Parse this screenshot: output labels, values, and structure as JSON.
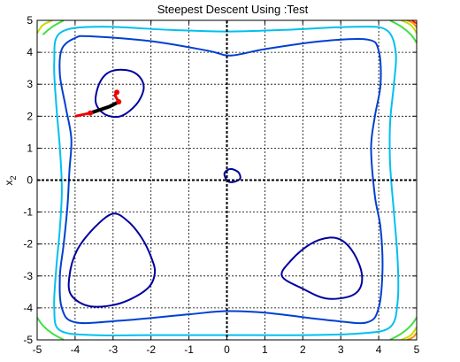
{
  "chart_data": {
    "type": "line",
    "title": "Steepest Descent Using :Test",
    "xlabel": "",
    "ylabel": "x2",
    "ylabel_main": "x",
    "ylabel_sub": "2",
    "xlim": [
      -5,
      5
    ],
    "ylim": [
      -5,
      5
    ],
    "xticks": [
      "-5",
      "-4",
      "-3",
      "-2",
      "-1",
      "0",
      "1",
      "2",
      "3",
      "4",
      "5"
    ],
    "yticks": [
      "5",
      "4",
      "3",
      "2",
      "1",
      "0",
      "-1",
      "-2",
      "-3",
      "-4",
      "-5"
    ],
    "grid": true,
    "contour_colors": {
      "inner": "#0000a0",
      "mid": "#0040d0",
      "cyan": "#00c0f0",
      "green": "#40e040",
      "yellow": "#c0e000",
      "orange": "#ff9000",
      "red": "#ff2000"
    },
    "series": [
      {
        "kind": "contour",
        "level": "inner",
        "points": [
          [
            -2.9,
            3.45
          ],
          [
            -2.5,
            3.4
          ],
          [
            -2.25,
            3.15
          ],
          [
            -2.2,
            2.8
          ],
          [
            -2.4,
            2.35
          ],
          [
            -2.8,
            2.0
          ],
          [
            -3.2,
            2.05
          ],
          [
            -3.45,
            2.4
          ],
          [
            -3.4,
            2.9
          ],
          [
            -3.2,
            3.3
          ]
        ]
      },
      {
        "kind": "contour",
        "level": "inner",
        "points": [
          [
            -3.0,
            -1.05
          ],
          [
            -2.6,
            -1.3
          ],
          [
            -2.25,
            -1.8
          ],
          [
            -2.0,
            -2.4
          ],
          [
            -1.9,
            -2.9
          ],
          [
            -2.1,
            -3.4
          ],
          [
            -2.8,
            -3.85
          ],
          [
            -3.6,
            -3.95
          ],
          [
            -4.1,
            -3.6
          ],
          [
            -4.15,
            -3.0
          ],
          [
            -3.95,
            -2.2
          ],
          [
            -3.5,
            -1.5
          ]
        ]
      },
      {
        "kind": "contour",
        "level": "inner",
        "points": [
          [
            2.7,
            -1.8
          ],
          [
            3.05,
            -1.9
          ],
          [
            3.35,
            -2.3
          ],
          [
            3.55,
            -2.9
          ],
          [
            3.5,
            -3.4
          ],
          [
            3.2,
            -3.65
          ],
          [
            2.6,
            -3.7
          ],
          [
            2.0,
            -3.4
          ],
          [
            1.45,
            -3.0
          ],
          [
            1.7,
            -2.5
          ],
          [
            2.2,
            -2.0
          ]
        ]
      },
      {
        "kind": "contour",
        "level": "inner",
        "points": [
          [
            0.1,
            0.35
          ],
          [
            0.3,
            0.25
          ],
          [
            0.35,
            0.05
          ],
          [
            0.2,
            -0.05
          ],
          [
            0.05,
            -0.05
          ],
          [
            -0.05,
            0.1
          ],
          [
            -0.05,
            0.25
          ]
        ]
      },
      {
        "kind": "contour",
        "level": "mid",
        "points": [
          [
            -3.6,
            4.5
          ],
          [
            -2.0,
            4.35
          ],
          [
            -0.5,
            4.05
          ],
          [
            0.1,
            3.9
          ],
          [
            1.0,
            4.1
          ],
          [
            2.5,
            4.35
          ],
          [
            3.7,
            4.4
          ],
          [
            4.0,
            4.05
          ],
          [
            4.05,
            3.0
          ],
          [
            3.9,
            2.0
          ],
          [
            3.8,
            1.0
          ],
          [
            3.9,
            -0.5
          ],
          [
            4.05,
            -1.5
          ],
          [
            4.1,
            -2.8
          ],
          [
            4.0,
            -4.0
          ],
          [
            3.7,
            -4.45
          ],
          [
            2.8,
            -4.4
          ],
          [
            1.0,
            -4.15
          ],
          [
            0.0,
            -4.1
          ],
          [
            -1.0,
            -4.2
          ],
          [
            -2.8,
            -4.4
          ],
          [
            -4.0,
            -4.45
          ],
          [
            -4.35,
            -4.0
          ],
          [
            -4.4,
            -3.0
          ],
          [
            -4.3,
            -2.0
          ],
          [
            -4.2,
            -0.8
          ],
          [
            -4.15,
            0.3
          ],
          [
            -4.1,
            1.3
          ],
          [
            -4.25,
            2.3
          ],
          [
            -4.4,
            3.3
          ],
          [
            -4.35,
            4.1
          ],
          [
            -4.0,
            4.45
          ]
        ]
      },
      {
        "kind": "contour",
        "level": "cyan",
        "points": [
          [
            -3.4,
            4.8
          ],
          [
            -1.5,
            4.7
          ],
          [
            0.0,
            4.65
          ],
          [
            1.5,
            4.7
          ],
          [
            3.4,
            4.8
          ],
          [
            4.2,
            4.7
          ],
          [
            4.45,
            4.0
          ],
          [
            4.4,
            3.0
          ],
          [
            4.3,
            1.8
          ],
          [
            4.3,
            0.5
          ],
          [
            4.4,
            -1.0
          ],
          [
            4.5,
            -2.5
          ],
          [
            4.5,
            -3.8
          ],
          [
            4.3,
            -4.6
          ],
          [
            3.5,
            -4.8
          ],
          [
            2.0,
            -4.85
          ],
          [
            0.0,
            -4.85
          ],
          [
            -2.0,
            -4.85
          ],
          [
            -3.5,
            -4.85
          ],
          [
            -4.4,
            -4.7
          ],
          [
            -4.55,
            -4.0
          ],
          [
            -4.5,
            -2.8
          ],
          [
            -4.4,
            -1.5
          ],
          [
            -4.35,
            -0.3
          ],
          [
            -4.4,
            1.0
          ],
          [
            -4.5,
            2.4
          ],
          [
            -4.55,
            3.7
          ],
          [
            -4.4,
            4.6
          ]
        ]
      },
      {
        "kind": "contour",
        "level": "green",
        "points": [
          [
            -4.85,
            4.55
          ],
          [
            -4.6,
            4.8
          ],
          [
            -4.3,
            5.0
          ]
        ]
      },
      {
        "kind": "contour",
        "level": "green",
        "points": [
          [
            4.3,
            5.0
          ],
          [
            4.6,
            4.8
          ],
          [
            4.85,
            4.55
          ],
          [
            5.0,
            4.3
          ]
        ]
      },
      {
        "kind": "contour",
        "level": "green",
        "points": [
          [
            4.3,
            -5.0
          ],
          [
            4.6,
            -4.8
          ],
          [
            4.85,
            -4.55
          ],
          [
            5.0,
            -4.3
          ]
        ]
      },
      {
        "kind": "contour",
        "level": "green",
        "points": [
          [
            -4.3,
            -5.0
          ],
          [
            -4.6,
            -4.8
          ],
          [
            -4.85,
            -4.55
          ],
          [
            -5.0,
            -4.3
          ]
        ]
      },
      {
        "kind": "contour",
        "level": "yellow",
        "points": [
          [
            -5.0,
            4.6
          ],
          [
            -4.85,
            4.85
          ],
          [
            -4.6,
            5.0
          ]
        ]
      },
      {
        "kind": "contour",
        "level": "yellow",
        "points": [
          [
            4.6,
            5.0
          ],
          [
            4.85,
            4.85
          ],
          [
            5.0,
            4.6
          ]
        ]
      },
      {
        "kind": "contour",
        "level": "yellow",
        "points": [
          [
            4.6,
            -5.0
          ],
          [
            4.85,
            -4.85
          ],
          [
            5.0,
            -4.6
          ]
        ]
      },
      {
        "kind": "contour",
        "level": "orange",
        "points": [
          [
            4.75,
            5.0
          ],
          [
            4.9,
            4.92
          ],
          [
            5.0,
            4.78
          ]
        ]
      },
      {
        "kind": "contour",
        "level": "orange",
        "points": [
          [
            4.75,
            -5.0
          ],
          [
            4.9,
            -4.92
          ],
          [
            5.0,
            -4.78
          ]
        ]
      },
      {
        "kind": "contour",
        "level": "red",
        "points": [
          [
            4.88,
            5.0
          ],
          [
            5.0,
            4.9
          ]
        ]
      }
    ],
    "descent_path": {
      "black": [
        [
          -3.6,
          2.1
        ],
        [
          -3.35,
          2.2
        ],
        [
          -3.1,
          2.3
        ],
        [
          -2.85,
          2.45
        ]
      ],
      "red": [
        [
          -4.0,
          2.0
        ],
        [
          -3.6,
          2.1
        ]
      ],
      "red_tail": [
        [
          -2.85,
          2.45
        ],
        [
          -2.95,
          2.65
        ],
        [
          -2.9,
          2.75
        ]
      ],
      "red_points": [
        [
          -3.6,
          2.1
        ],
        [
          -2.9,
          2.75
        ],
        [
          -2.85,
          2.45
        ]
      ],
      "colors": {
        "descent": "#000000",
        "path": "#ee0000"
      }
    }
  }
}
